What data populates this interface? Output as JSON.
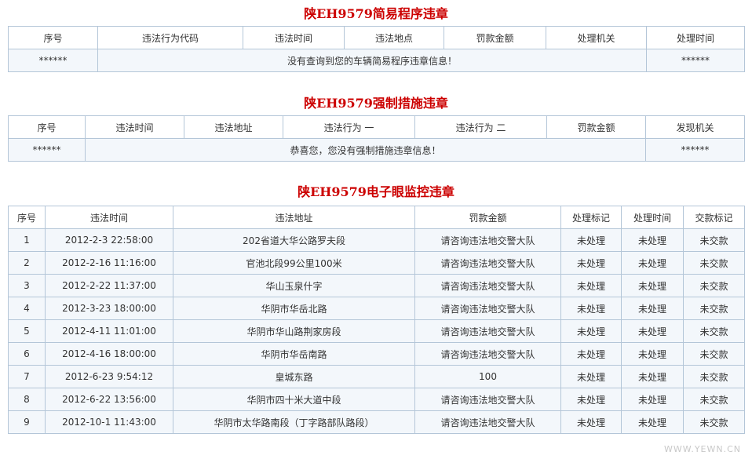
{
  "sections": [
    {
      "title": "陕EH9579简易程序违章",
      "columns": [
        "序号",
        "违法行为代码",
        "违法时间",
        "违法地点",
        "罚款金额",
        "处理机关",
        "处理时间"
      ],
      "rows": [
        [
          "******",
          "没有查询到您的车辆简易程序违章信息！",
          "******"
        ]
      ]
    },
    {
      "title": "陕EH9579强制措施违章",
      "columns": [
        "序号",
        "违法时间",
        "违法地址",
        "违法行为 一",
        "违法行为 二",
        "罚款金额",
        "发现机关"
      ],
      "rows": [
        [
          "******",
          "恭喜您，您没有强制措施违章信息！",
          "******"
        ]
      ]
    },
    {
      "title": "陕EH9579电子眼监控违章",
      "columns": [
        "序号",
        "违法时间",
        "违法地址",
        "罚款金额",
        "处理标记",
        "处理时间",
        "交款标记"
      ],
      "rows": [
        [
          "1",
          "2012-2-3 22:58:00",
          "202省道大华公路罗夫段",
          "请咨询违法地交警大队",
          "未处理",
          "未处理",
          "未交款"
        ],
        [
          "2",
          "2012-2-16 11:16:00",
          "官池北段99公里100米",
          "请咨询违法地交警大队",
          "未处理",
          "未处理",
          "未交款"
        ],
        [
          "3",
          "2012-2-22 11:37:00",
          "华山玉泉什字",
          "请咨询违法地交警大队",
          "未处理",
          "未处理",
          "未交款"
        ],
        [
          "4",
          "2012-3-23 18:00:00",
          "华阴市华岳北路",
          "请咨询违法地交警大队",
          "未处理",
          "未处理",
          "未交款"
        ],
        [
          "5",
          "2012-4-11 11:01:00",
          "华阴市华山路荆家房段",
          "请咨询违法地交警大队",
          "未处理",
          "未处理",
          "未交款"
        ],
        [
          "6",
          "2012-4-16 18:00:00",
          "华阴市华岳南路",
          "请咨询违法地交警大队",
          "未处理",
          "未处理",
          "未交款"
        ],
        [
          "7",
          "2012-6-23 9:54:12",
          "皇城东路",
          "100",
          "未处理",
          "未处理",
          "未交款"
        ],
        [
          "8",
          "2012-6-22 13:56:00",
          "华阴市四十米大道中段",
          "请咨询违法地交警大队",
          "未处理",
          "未处理",
          "未交款"
        ],
        [
          "9",
          "2012-10-1 11:43:00",
          "华阴市太华路南段（丁字路部队路段）",
          "请咨询违法地交警大队",
          "未处理",
          "未处理",
          "未交款"
        ]
      ]
    }
  ],
  "watermark": "WWW.YEWN.CN"
}
